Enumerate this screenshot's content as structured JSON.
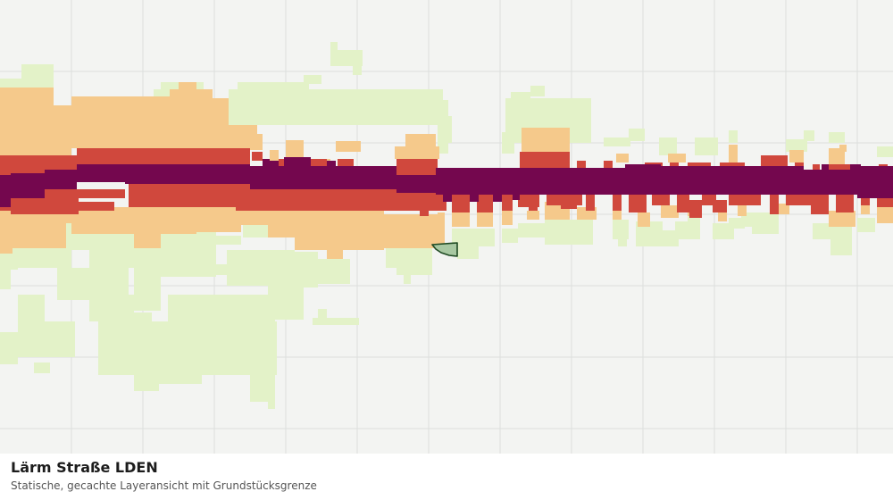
{
  "map": {
    "layer_colors": {
      "background": "#f3f4f2",
      "grid": "#dcdedc",
      "level_low": "#e3f2c8",
      "level_mid": "#f5c98b",
      "level_high": "#d0483d",
      "level_max": "#74074e",
      "parcel_fill": "#a8c8a2",
      "parcel_stroke": "#1f4a23"
    }
  },
  "caption": {
    "title": "Lärm Straße LDEN",
    "subtitle": "Statische, gecachte Layeransicht mit Grundstücksgrenze"
  }
}
